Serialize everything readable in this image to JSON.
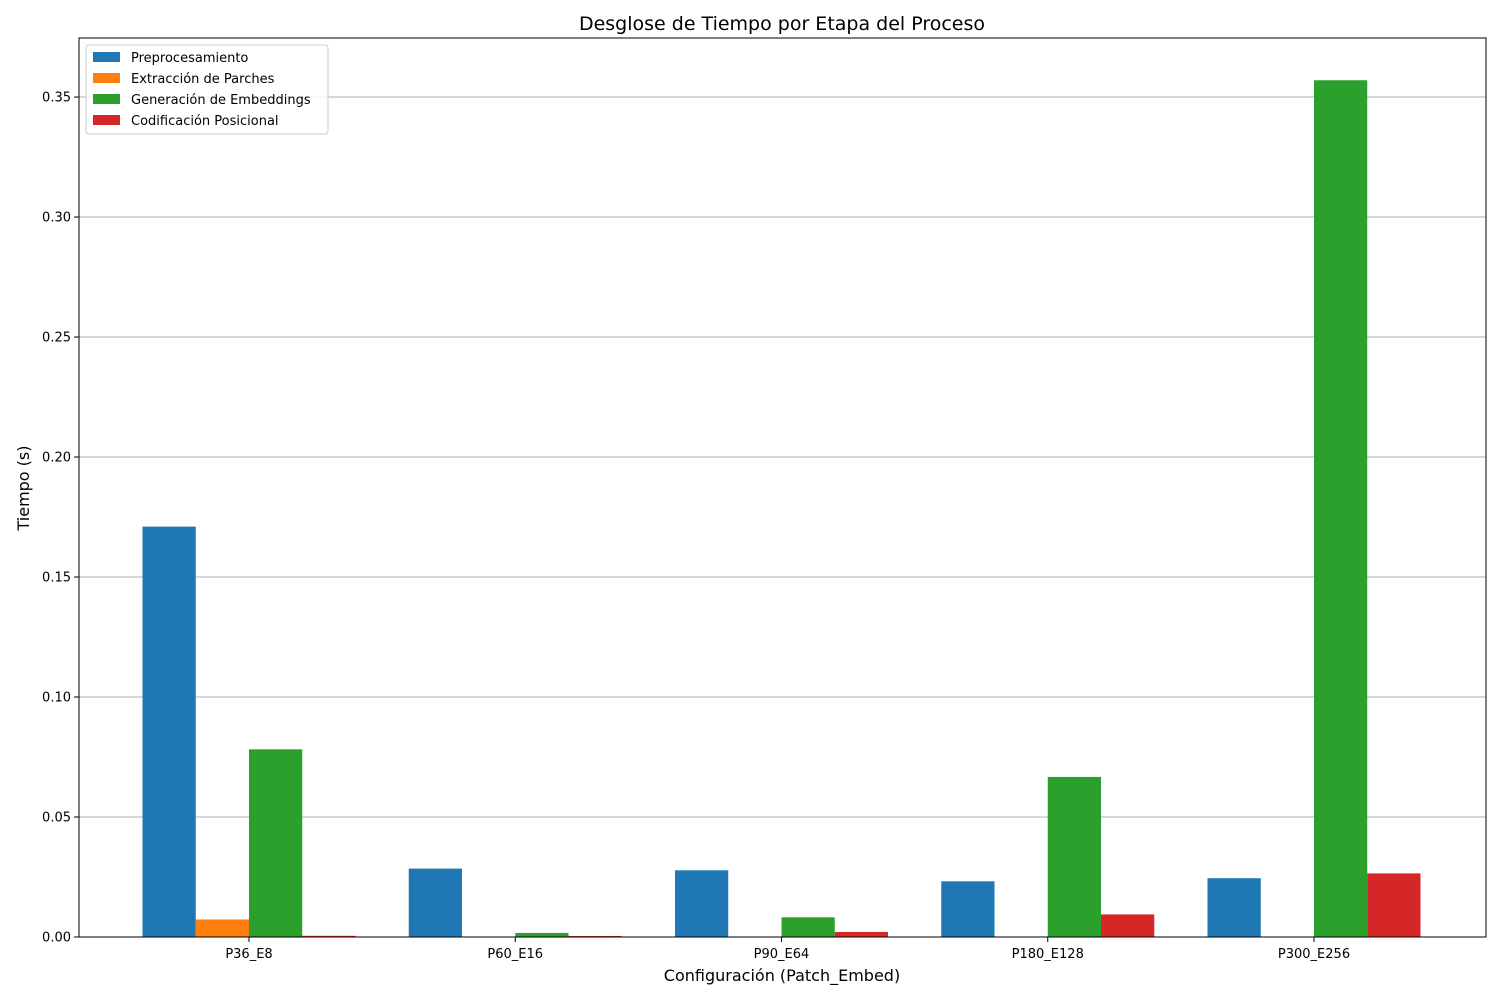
{
  "chart_data": {
    "type": "bar",
    "title": "Desglose de Tiempo por Etapa del Proceso",
    "xlabel": "Configuración (Patch_Embed)",
    "ylabel": "Tiempo (s)",
    "categories": [
      "P36_E8",
      "P60_E16",
      "P90_E64",
      "P180_E128",
      "P300_E256"
    ],
    "series": [
      {
        "name": "Preprocesamiento",
        "color": "#1f77b4",
        "values": [
          0.171,
          0.0285,
          0.0278,
          0.0232,
          0.0245
        ]
      },
      {
        "name": "Extracción de Parches",
        "color": "#ff7f0e",
        "values": [
          0.0073,
          0.0001,
          0.0001,
          0.0001,
          0.0001
        ]
      },
      {
        "name": "Generación de Embeddings",
        "color": "#2ca02c",
        "values": [
          0.0782,
          0.0017,
          0.0082,
          0.0667,
          0.357
        ]
      },
      {
        "name": "Codificación Posicional",
        "color": "#d62728",
        "values": [
          0.0005,
          0.0004,
          0.0021,
          0.0094,
          0.0265
        ]
      }
    ],
    "ylim": [
      0,
      0.3746
    ],
    "yticks": [
      "0.00",
      "0.05",
      "0.10",
      "0.15",
      "0.20",
      "0.25",
      "0.30",
      "0.35"
    ],
    "grid": "horizontal",
    "legend_position": "top-left"
  }
}
